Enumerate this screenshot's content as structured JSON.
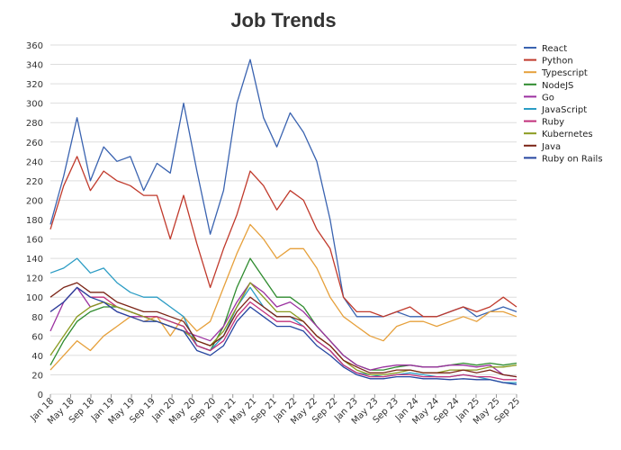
{
  "chart_data": {
    "type": "line",
    "title": "Job Trends",
    "xlabel": "",
    "ylabel": "",
    "ylim": [
      0,
      360
    ],
    "yticks": [
      0,
      20,
      40,
      60,
      80,
      100,
      120,
      140,
      160,
      180,
      200,
      220,
      240,
      260,
      280,
      300,
      320,
      340,
      360
    ],
    "x_tick_labels": [
      "Jan 18",
      "May 18",
      "Sep 18",
      "Jan 19",
      "May 19",
      "Sep 19",
      "Jan 20",
      "May 20",
      "Sep 20",
      "Jan 21",
      "May 21",
      "Sep 21",
      "Jan 22",
      "May 22",
      "Sep 22",
      "Jan 23",
      "May 23",
      "Sep 23",
      "Jan 24",
      "May 24",
      "Sep 24",
      "Jan 25",
      "May 25",
      "Sep 25"
    ],
    "grid": true,
    "legend": "right",
    "series": [
      {
        "name": "React",
        "color": "#3a63b0",
        "values": [
          175,
          225,
          285,
          220,
          255,
          240,
          245,
          210,
          238,
          228,
          300,
          230,
          165,
          210,
          300,
          345,
          285,
          255,
          290,
          270,
          240,
          180,
          100,
          80,
          80,
          80,
          85,
          80,
          80,
          80,
          85,
          90,
          80,
          85,
          90,
          85
        ]
      },
      {
        "name": "Python",
        "color": "#c0392b",
        "values": [
          170,
          215,
          245,
          210,
          230,
          220,
          215,
          205,
          205,
          160,
          205,
          155,
          110,
          150,
          185,
          230,
          215,
          190,
          210,
          200,
          170,
          150,
          100,
          85,
          85,
          80,
          85,
          90,
          80,
          80,
          85,
          90,
          85,
          90,
          100,
          90
        ]
      },
      {
        "name": "Typescript",
        "color": "#e6a03b",
        "values": [
          25,
          40,
          55,
          45,
          60,
          70,
          80,
          75,
          80,
          60,
          80,
          65,
          75,
          110,
          145,
          175,
          160,
          140,
          150,
          150,
          130,
          100,
          80,
          70,
          60,
          55,
          70,
          75,
          75,
          70,
          75,
          80,
          75,
          85,
          85,
          80
        ]
      },
      {
        "name": "NodeJS",
        "color": "#2e8b2e",
        "values": [
          30,
          55,
          75,
          85,
          90,
          90,
          85,
          80,
          80,
          75,
          70,
          50,
          45,
          70,
          110,
          140,
          120,
          100,
          100,
          90,
          70,
          55,
          40,
          30,
          25,
          25,
          28,
          30,
          28,
          28,
          30,
          32,
          30,
          32,
          30,
          32
        ]
      },
      {
        "name": "Go",
        "color": "#9b30a0",
        "values": [
          65,
          95,
          110,
          90,
          95,
          85,
          80,
          80,
          75,
          70,
          65,
          60,
          55,
          70,
          95,
          115,
          105,
          90,
          95,
          85,
          70,
          55,
          40,
          30,
          25,
          28,
          30,
          30,
          28,
          28,
          30,
          30,
          28,
          30,
          20,
          18
        ]
      },
      {
        "name": "JavaScript",
        "color": "#2b9cc4",
        "values": [
          125,
          130,
          140,
          125,
          130,
          115,
          105,
          100,
          100,
          90,
          80,
          50,
          45,
          60,
          90,
          110,
          90,
          80,
          80,
          70,
          55,
          45,
          30,
          22,
          20,
          18,
          20,
          22,
          20,
          18,
          18,
          20,
          18,
          15,
          12,
          12
        ]
      },
      {
        "name": "Ruby",
        "color": "#c2307a",
        "values": [
          85,
          95,
          110,
          100,
          100,
          90,
          85,
          80,
          80,
          75,
          70,
          50,
          45,
          55,
          80,
          95,
          85,
          75,
          75,
          70,
          55,
          45,
          30,
          22,
          18,
          18,
          20,
          20,
          18,
          18,
          18,
          20,
          18,
          18,
          15,
          15
        ]
      },
      {
        "name": "Kubernetes",
        "color": "#8a9a1f",
        "values": [
          40,
          60,
          80,
          90,
          95,
          90,
          85,
          80,
          75,
          70,
          65,
          55,
          50,
          65,
          90,
          115,
          100,
          85,
          85,
          75,
          60,
          50,
          35,
          25,
          20,
          20,
          22,
          25,
          22,
          22,
          25,
          25,
          25,
          28,
          28,
          30
        ]
      },
      {
        "name": "Java",
        "color": "#7b2416",
        "values": [
          100,
          110,
          115,
          105,
          105,
          95,
          90,
          85,
          85,
          80,
          75,
          55,
          50,
          60,
          85,
          100,
          90,
          80,
          80,
          75,
          60,
          50,
          35,
          28,
          22,
          22,
          25,
          25,
          22,
          22,
          22,
          25,
          22,
          25,
          20,
          18
        ]
      },
      {
        "name": "Ruby on Rails",
        "color": "#2545a0",
        "values": [
          85,
          95,
          110,
          100,
          95,
          85,
          80,
          75,
          75,
          70,
          65,
          45,
          40,
          50,
          75,
          90,
          80,
          70,
          70,
          65,
          50,
          40,
          28,
          20,
          16,
          16,
          18,
          18,
          16,
          16,
          15,
          16,
          15,
          15,
          12,
          10
        ]
      }
    ]
  }
}
